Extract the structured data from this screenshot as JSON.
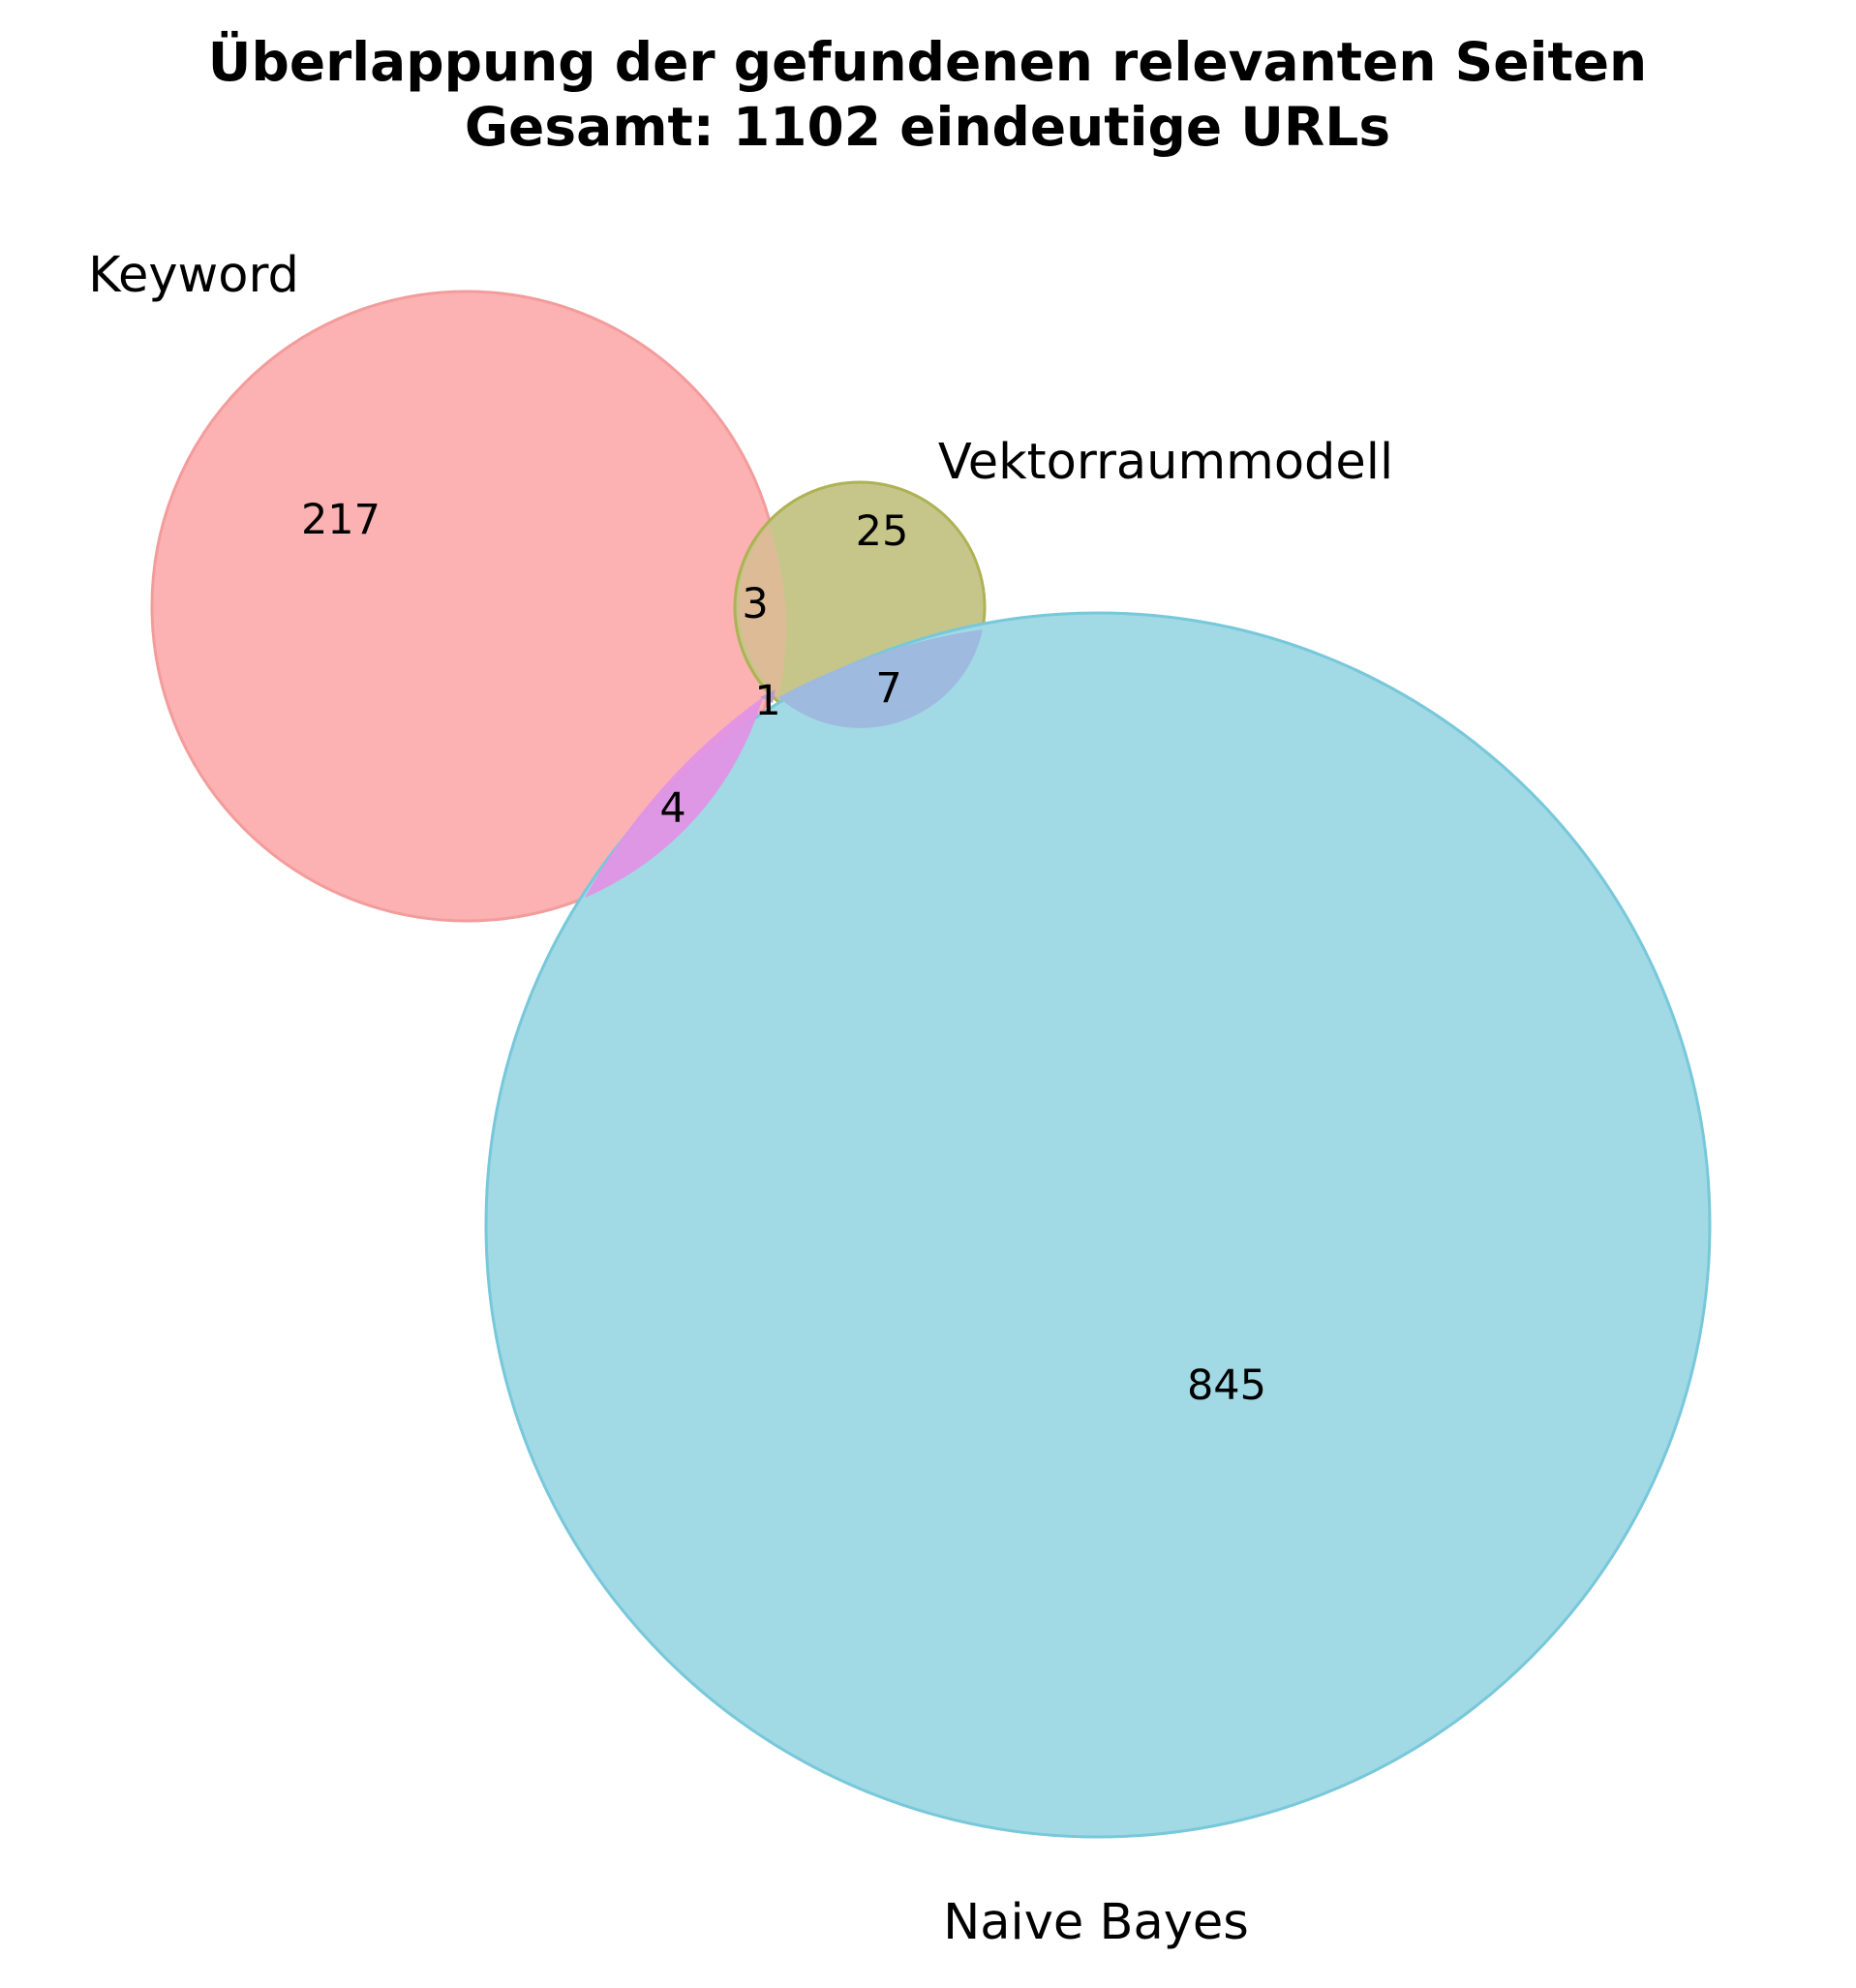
{
  "title": {
    "line1": "Überlappung der gefundenen relevanten Seiten",
    "line2": "Gesamt: 1102 eindeutige URLs"
  },
  "sets": {
    "keyword": {
      "name": "Keyword",
      "color": "#f88c8c"
    },
    "vector": {
      "name": "Vektorraummodell",
      "color": "#a9ab3a"
    },
    "bayes": {
      "name": "Naive Bayes",
      "color": "#66c2d8"
    }
  },
  "regions": {
    "keyword_only": "217",
    "vector_only": "25",
    "bayes_only": "845",
    "keyword_vector": "3",
    "vector_bayes": "7",
    "keyword_bayes": "4",
    "all_three": "1"
  },
  "colors": {
    "keyword_vector_overlap": "#d9b48f",
    "vector_bayes_overlap": "#98b6e0",
    "keyword_bayes_overlap": "#e08ce6",
    "all_three_overlap": "#b58ec8"
  }
}
